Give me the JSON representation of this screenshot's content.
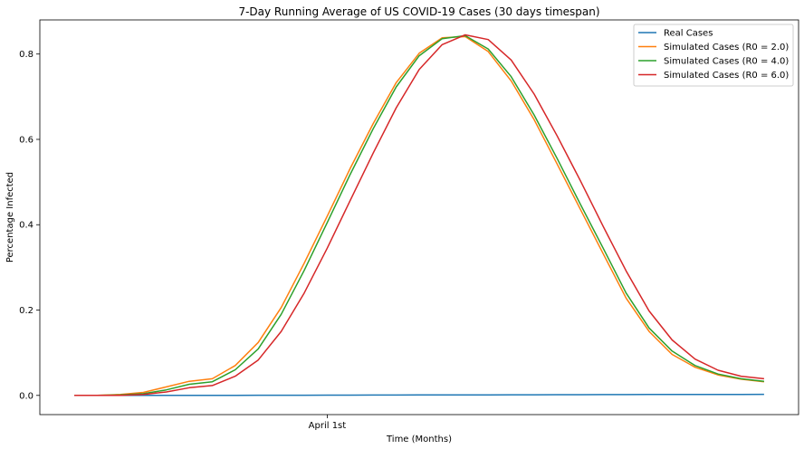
{
  "chart_data": {
    "type": "line",
    "title": "7-Day Running Average of US COVID-19 Cases (30 days timespan)",
    "xlabel": "Time (Months)",
    "ylabel": "Percentage Infected",
    "x_ticks": [
      {
        "label": "April 1st",
        "index": 11
      }
    ],
    "y_ticks": [
      "0.0",
      "0.2",
      "0.4",
      "0.6",
      "0.8"
    ],
    "ylim": [
      -0.045,
      0.88
    ],
    "xlim": [
      -1.5,
      31.5
    ],
    "grid": false,
    "legend_position": "top-right",
    "x": [
      0,
      1,
      2,
      3,
      4,
      5,
      6,
      7,
      8,
      9,
      10,
      11,
      12,
      13,
      14,
      15,
      16,
      17,
      18,
      19,
      20,
      21,
      22,
      23,
      24,
      25,
      26,
      27,
      28,
      29,
      30
    ],
    "series": [
      {
        "name": "Real Cases",
        "color": "#1f77b4",
        "values": [
          0.0,
          0.0,
          0.0,
          0.0,
          0.0,
          0.0001,
          0.0001,
          0.0002,
          0.0003,
          0.0004,
          0.0005,
          0.0006,
          0.0007,
          0.0008,
          0.0009,
          0.001,
          0.0011,
          0.0012,
          0.0013,
          0.0014,
          0.0015,
          0.0016,
          0.0017,
          0.0018,
          0.0019,
          0.002,
          0.0021,
          0.0022,
          0.0023,
          0.0024,
          0.0025
        ]
      },
      {
        "name": "Simulated Cases (R0 = 2.0)",
        "color": "#ff7f0e",
        "values": [
          0.0,
          0.0,
          0.002,
          0.007,
          0.02,
          0.033,
          0.039,
          0.07,
          0.124,
          0.206,
          0.31,
          0.42,
          0.532,
          0.637,
          0.733,
          0.802,
          0.838,
          0.841,
          0.806,
          0.737,
          0.646,
          0.542,
          0.437,
          0.332,
          0.228,
          0.15,
          0.096,
          0.066,
          0.048,
          0.038,
          0.032
        ]
      },
      {
        "name": "Simulated Cases (R0 = 4.0)",
        "color": "#2ca02c",
        "values": [
          0.0,
          0.0,
          0.001,
          0.004,
          0.013,
          0.026,
          0.032,
          0.06,
          0.109,
          0.19,
          0.293,
          0.405,
          0.518,
          0.625,
          0.723,
          0.796,
          0.836,
          0.843,
          0.812,
          0.747,
          0.657,
          0.555,
          0.449,
          0.345,
          0.24,
          0.158,
          0.104,
          0.07,
          0.05,
          0.039,
          0.033
        ]
      },
      {
        "name": "Simulated Cases (R0 = 6.0)",
        "color": "#d62728",
        "values": [
          0.0,
          0.0,
          0.0,
          0.002,
          0.008,
          0.018,
          0.023,
          0.045,
          0.083,
          0.15,
          0.24,
          0.345,
          0.457,
          0.568,
          0.674,
          0.764,
          0.822,
          0.845,
          0.834,
          0.786,
          0.706,
          0.608,
          0.504,
          0.396,
          0.292,
          0.198,
          0.13,
          0.085,
          0.059,
          0.045,
          0.039
        ]
      }
    ]
  }
}
